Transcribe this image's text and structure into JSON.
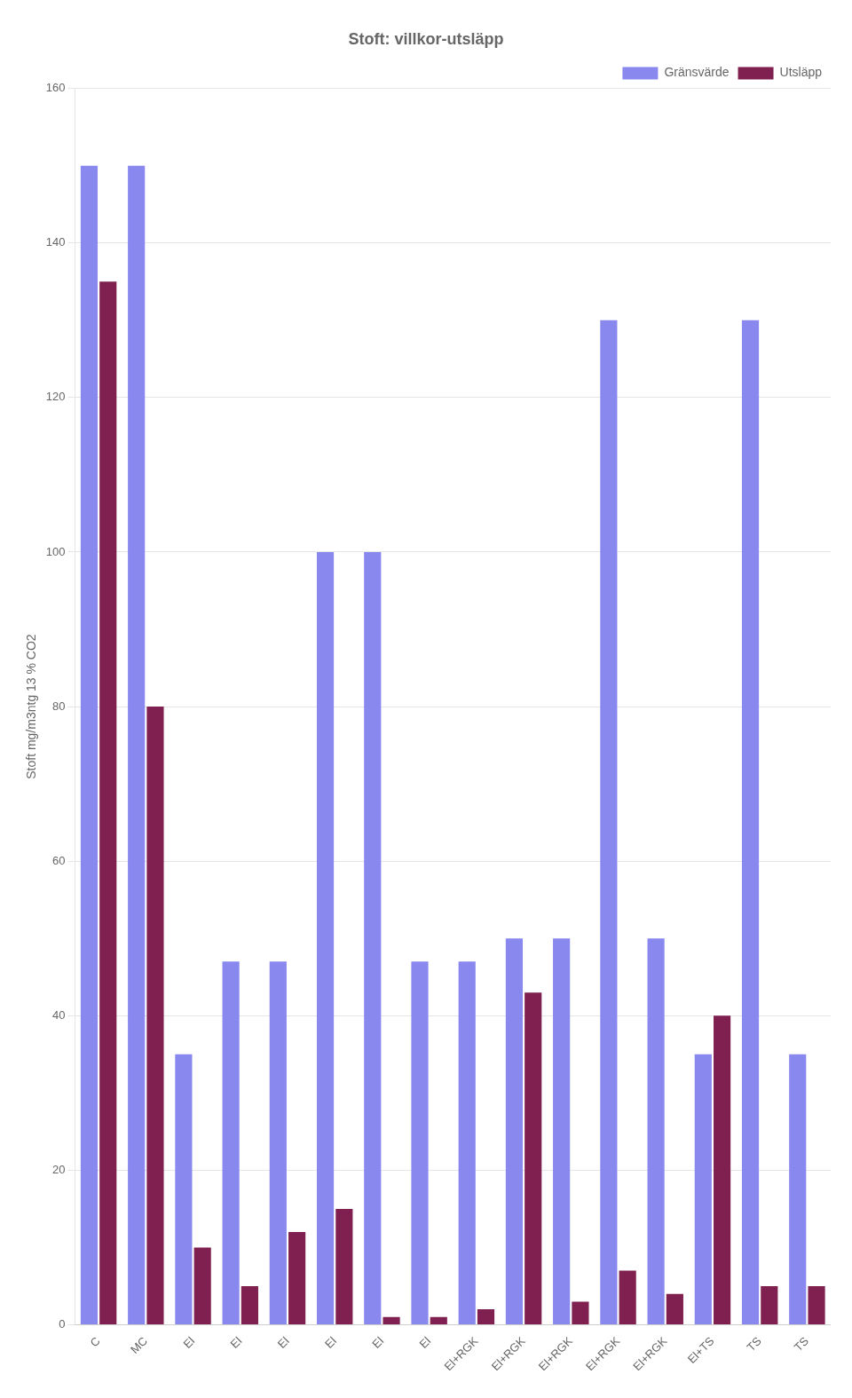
{
  "chart_data": {
    "type": "bar",
    "title": "Stoft: villkor-utsläpp",
    "ylabel": "Stoft mg/m3ntg 13 % CO2",
    "categories": [
      "C",
      "MC",
      "El",
      "El",
      "El",
      "El",
      "El",
      "El",
      "El+RGK",
      "El+RGK",
      "El+RGK",
      "El+RGK",
      "El+RGK",
      "El+TS",
      "TS",
      "TS"
    ],
    "series": [
      {
        "name": "Gränsvärde",
        "color": "#8888EE",
        "values": [
          150,
          150,
          35,
          47,
          47,
          100,
          100,
          47,
          47,
          50,
          50,
          130,
          50,
          35,
          130,
          35
        ]
      },
      {
        "name": "Utsläpp",
        "color": "#802050",
        "values": [
          135,
          80,
          10,
          5,
          12,
          15,
          1,
          1,
          2,
          43,
          3,
          7,
          4,
          40,
          5,
          5
        ]
      }
    ],
    "ylim": [
      0,
      160
    ],
    "yticks": [
      0,
      20,
      40,
      60,
      80,
      100,
      120,
      140,
      160
    ],
    "grid": true,
    "legend": "upper right"
  }
}
